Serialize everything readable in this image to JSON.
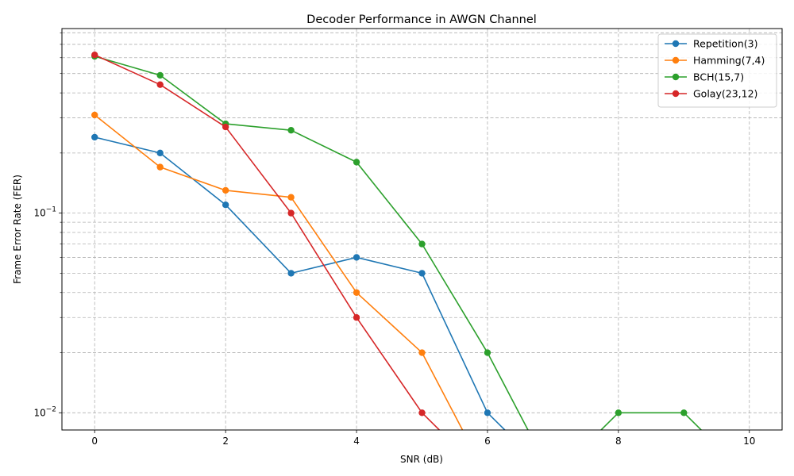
{
  "chart_data": {
    "type": "line",
    "title": "Decoder Performance in AWGN Channel",
    "xlabel": "SNR (dB)",
    "ylabel": "Frame Error Rate (FER)",
    "y_scale": "log",
    "xlim": [
      -0.5,
      10.5
    ],
    "ylim": [
      0.0082,
      0.84
    ],
    "x_ticks": [
      0,
      2,
      4,
      6,
      8,
      10
    ],
    "x_tick_labels": [
      "0",
      "2",
      "4",
      "6",
      "8",
      "10"
    ],
    "y_major_ticks": [
      0.01,
      0.1
    ],
    "y_minor_ticks": [
      0.02,
      0.03,
      0.04,
      0.05,
      0.06,
      0.07,
      0.08,
      0.09,
      0.2,
      0.3,
      0.4,
      0.5,
      0.6,
      0.7,
      0.8
    ],
    "grid": true,
    "legend_position": "upper right",
    "x": [
      0,
      1,
      2,
      3,
      4,
      5,
      6,
      7,
      8,
      9,
      10
    ],
    "series": [
      {
        "name": "Repetition(3)",
        "color": "#1f77b4",
        "values": [
          0.24,
          0.2,
          0.11,
          0.05,
          0.06,
          0.05,
          0.01,
          0,
          0,
          0,
          0
        ]
      },
      {
        "name": "Hamming(7,4)",
        "color": "#ff7f0e",
        "values": [
          0.31,
          0.17,
          0.13,
          0.12,
          0.04,
          0.02,
          0,
          0,
          0,
          0,
          0
        ]
      },
      {
        "name": "BCH(15,7)",
        "color": "#2ca02c",
        "values": [
          0.61,
          0.49,
          0.28,
          0.26,
          0.18,
          0.07,
          0.02,
          0,
          0.01,
          0.01,
          0
        ]
      },
      {
        "name": "Golay(23,12)",
        "color": "#d62728",
        "values": [
          0.62,
          0.44,
          0.27,
          0.1,
          0.03,
          0.01,
          0,
          0,
          0,
          0,
          0
        ]
      }
    ]
  }
}
